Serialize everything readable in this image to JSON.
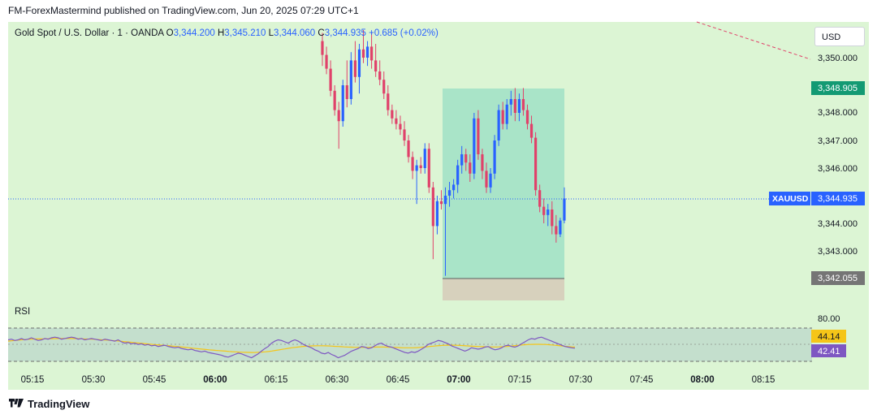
{
  "header": "FM-ForexMastermind published on TradingView.com, Jun 20, 2025 07:29 UTC+1",
  "legend": {
    "symbol": "Gold Spot / U.S. Dollar · 1 · OANDA",
    "o_label": "O",
    "o": "3,344.200",
    "h_label": "H",
    "h": "3,345.210",
    "l_label": "L",
    "l": "3,344.060",
    "c_label": "C",
    "c": "3,344.935",
    "change": "+0.685 (+0.02%)"
  },
  "currency_button": "USD",
  "price_axis": {
    "ticks": [
      "3,350.000",
      "3,348.000",
      "3,347.000",
      "3,346.000",
      "3,344.000",
      "3,343.000"
    ],
    "top_box": "3,348.905",
    "bottom_box": "3,342.055",
    "last_symbol": "XAUUSD",
    "last_price": "3,344.935"
  },
  "rsi": {
    "label": "RSI",
    "level_80": "80.00",
    "ma_value": "44.14",
    "rsi_value": "42.41"
  },
  "time_axis": [
    "05:15",
    "05:30",
    "05:45",
    "06:00",
    "06:15",
    "06:30",
    "06:45",
    "07:00",
    "07:15",
    "07:30",
    "07:45",
    "08:00",
    "08:15"
  ],
  "footer": "TradingView",
  "colors": {
    "up": "#2962ff",
    "down": "#e0416a",
    "background": "#dcf5d4",
    "profit_zone": "#a9e4c8",
    "loss_zone": "#d7d1bd",
    "rsi_line": "#7e57c2",
    "rsi_ma": "#f5c518"
  },
  "chart_data": {
    "type": "candlestick",
    "ylim": [
      3342.0,
      3350.8
    ],
    "position_entry": 3342.45,
    "position_target": 3348.905,
    "position_stop": 3342.055,
    "last_price": 3344.935,
    "candles_note": "1-minute OHLC, ~06:28 to 07:29 (values estimated from chart)",
    "candles": [
      [
        3350.6,
        3350.9,
        3349.7,
        3350.1
      ],
      [
        3350.1,
        3350.4,
        3349.4,
        3349.6
      ],
      [
        3349.6,
        3349.9,
        3348.6,
        3348.8
      ],
      [
        3348.8,
        3349.0,
        3347.9,
        3348.1
      ],
      [
        3348.1,
        3348.4,
        3346.7,
        3347.7
      ],
      [
        3347.7,
        3349.2,
        3347.5,
        3349.0
      ],
      [
        3349.0,
        3349.9,
        3348.2,
        3348.5
      ],
      [
        3348.5,
        3350.2,
        3348.3,
        3349.9
      ],
      [
        3349.9,
        3350.6,
        3349.1,
        3349.3
      ],
      [
        3349.3,
        3350.5,
        3348.7,
        3350.3
      ],
      [
        3350.3,
        3351.0,
        3349.8,
        3350.0
      ],
      [
        3350.0,
        3350.6,
        3349.7,
        3350.4
      ],
      [
        3350.4,
        3350.9,
        3349.6,
        3349.9
      ],
      [
        3349.9,
        3350.5,
        3349.3,
        3349.5
      ],
      [
        3349.5,
        3349.9,
        3349.0,
        3349.2
      ],
      [
        3349.2,
        3349.5,
        3348.5,
        3348.7
      ],
      [
        3348.7,
        3349.0,
        3347.9,
        3348.1
      ],
      [
        3348.1,
        3348.3,
        3347.6,
        3347.8
      ],
      [
        3347.8,
        3348.1,
        3347.4,
        3347.6
      ],
      [
        3347.6,
        3347.9,
        3347.2,
        3347.4
      ],
      [
        3347.4,
        3347.7,
        3346.8,
        3347.0
      ],
      [
        3347.0,
        3347.2,
        3346.2,
        3346.4
      ],
      [
        3346.4,
        3346.6,
        3345.6,
        3345.9
      ],
      [
        3345.9,
        3346.3,
        3344.7,
        3346.1
      ],
      [
        3346.1,
        3346.4,
        3345.8,
        3346.0
      ],
      [
        3346.0,
        3346.9,
        3345.8,
        3346.7
      ],
      [
        3346.7,
        3346.9,
        3345.1,
        3345.3
      ],
      [
        3345.3,
        3345.5,
        3342.7,
        3343.9
      ],
      [
        3343.9,
        3345.0,
        3343.6,
        3344.8
      ],
      [
        3344.8,
        3345.2,
        3344.5,
        3344.7
      ],
      [
        3344.7,
        3345.3,
        3342.1,
        3345.0
      ],
      [
        3345.0,
        3345.5,
        3344.6,
        3345.2
      ],
      [
        3345.2,
        3345.6,
        3344.9,
        3345.4
      ],
      [
        3345.4,
        3346.3,
        3345.1,
        3346.1
      ],
      [
        3346.1,
        3346.8,
        3345.8,
        3346.5
      ],
      [
        3346.5,
        3346.7,
        3345.9,
        3346.2
      ],
      [
        3346.2,
        3346.5,
        3345.5,
        3345.8
      ],
      [
        3345.8,
        3348.0,
        3345.6,
        3347.8
      ],
      [
        3347.8,
        3348.1,
        3346.3,
        3346.5
      ],
      [
        3346.5,
        3346.7,
        3345.6,
        3345.9
      ],
      [
        3345.9,
        3346.2,
        3345.1,
        3345.3
      ],
      [
        3345.3,
        3346.0,
        3345.1,
        3345.8
      ],
      [
        3345.8,
        3347.2,
        3345.6,
        3347.0
      ],
      [
        3347.0,
        3348.3,
        3346.8,
        3348.1
      ],
      [
        3348.1,
        3348.4,
        3347.4,
        3347.6
      ],
      [
        3347.6,
        3348.5,
        3347.4,
        3348.3
      ],
      [
        3348.3,
        3348.8,
        3347.9,
        3348.5
      ],
      [
        3348.5,
        3348.9,
        3347.7,
        3348.0
      ],
      [
        3348.0,
        3348.7,
        3347.7,
        3348.5
      ],
      [
        3348.5,
        3348.9,
        3347.9,
        3348.1
      ],
      [
        3348.1,
        3348.3,
        3347.4,
        3347.6
      ],
      [
        3347.6,
        3347.9,
        3346.9,
        3347.1
      ],
      [
        3347.1,
        3347.3,
        3345.0,
        3345.2
      ],
      [
        3345.2,
        3345.4,
        3344.4,
        3344.6
      ],
      [
        3344.6,
        3344.9,
        3344.0,
        3344.3
      ],
      [
        3344.3,
        3344.7,
        3343.9,
        3344.5
      ],
      [
        3344.5,
        3344.8,
        3343.6,
        3343.9
      ],
      [
        3343.9,
        3344.3,
        3343.3,
        3343.6
      ],
      [
        3343.6,
        3344.2,
        3343.5,
        3344.1
      ],
      [
        3344.1,
        3345.3,
        3344.0,
        3344.9
      ]
    ],
    "rsi_values": [
      55,
      56,
      54,
      55,
      57,
      55,
      56,
      58,
      56,
      54,
      55,
      57,
      56,
      58,
      59,
      58,
      56,
      57,
      58,
      59,
      58,
      56,
      57,
      55,
      56,
      57,
      56,
      55,
      54,
      56,
      55,
      54,
      53,
      55,
      52,
      50,
      51,
      49,
      50,
      48,
      49,
      47,
      48,
      46,
      47,
      45,
      46,
      47,
      45,
      44,
      43,
      44,
      42,
      41,
      40,
      41,
      39,
      38,
      37,
      38,
      36,
      35,
      34,
      33,
      32,
      30,
      29,
      31,
      33,
      35,
      34,
      32,
      30,
      28,
      31,
      34,
      38,
      42,
      45,
      50,
      53,
      55,
      54,
      52,
      50,
      53,
      55,
      53,
      50,
      47,
      45,
      43,
      40,
      38,
      35,
      34,
      36,
      33,
      31,
      28,
      30,
      32,
      35,
      38,
      40,
      42,
      45,
      44,
      42,
      43,
      46,
      49,
      50,
      47,
      45,
      44,
      42,
      40,
      38,
      36,
      35,
      37,
      36,
      38,
      41,
      44,
      48,
      50,
      52,
      54,
      53,
      51,
      49,
      46,
      44,
      42,
      40,
      38,
      40,
      43,
      42,
      41,
      42,
      44,
      45,
      42,
      40,
      41,
      43,
      46,
      47,
      45,
      44,
      46,
      49,
      52,
      55,
      57,
      56,
      58,
      59,
      57,
      55,
      53,
      51,
      49,
      47,
      45,
      44,
      43,
      42.41
    ],
    "rsi_ma_values": [
      53,
      53.5,
      54,
      54.5,
      55,
      55.4,
      55.7,
      56,
      56.2,
      56.3,
      56.4,
      56.5,
      56.6,
      56.7,
      56.8,
      56.9,
      57,
      57,
      57,
      57,
      56.9,
      56.8,
      56.6,
      56.4,
      56.2,
      56,
      55.8,
      55.5,
      55.2,
      54.9,
      54.6,
      54.2,
      53.8,
      53.4,
      53,
      52.5,
      52,
      51.5,
      51,
      50.5,
      50,
      49.5,
      49,
      48.5,
      48,
      47.6,
      47.2,
      46.8,
      46.4,
      46,
      45.5,
      45,
      44.5,
      44,
      43.5,
      43,
      42.5,
      42,
      41.5,
      41,
      40.5,
      40,
      39.6,
      39.2,
      38.8,
      38.4,
      38,
      37.6,
      37.2,
      36.9,
      36.6,
      36.4,
      36.2,
      36.1,
      36,
      36.1,
      36.3,
      36.6,
      37,
      37.5,
      38.2,
      39,
      39.8,
      40.6,
      41.4,
      42.2,
      43,
      43.6,
      44.2,
      44.7,
      45.2,
      45.5,
      45.8,
      46,
      46.1,
      46.1,
      46,
      45.8,
      45.6,
      45.3,
      45,
      44.7,
      44.4,
      44.2,
      44,
      43.8,
      43.7,
      43.6,
      43.6,
      43.7,
      43.8,
      44,
      44.1,
      44.1,
      44.1,
      44,
      43.9,
      43.7,
      43.5,
      43.3,
      43.1,
      43,
      43,
      43.1,
      43.3,
      43.6,
      44,
      44.5,
      45,
      45.5,
      46,
      46.4,
      46.7,
      46.9,
      47,
      47,
      46.8,
      46.6,
      46.3,
      46,
      45.7,
      45.4,
      45.1,
      44.9,
      44.7,
      44.5,
      44.4,
      44.3,
      44.3,
      44.4,
      44.6,
      44.9,
      45.3,
      45.8,
      46.3,
      46.8,
      47.3,
      47.7,
      48,
      48.2,
      48.3,
      48.3,
      48.2,
      48,
      47.7,
      47.3,
      46.8,
      46.3,
      45.8,
      45.3,
      44.8,
      44.4,
      44.14
    ]
  }
}
